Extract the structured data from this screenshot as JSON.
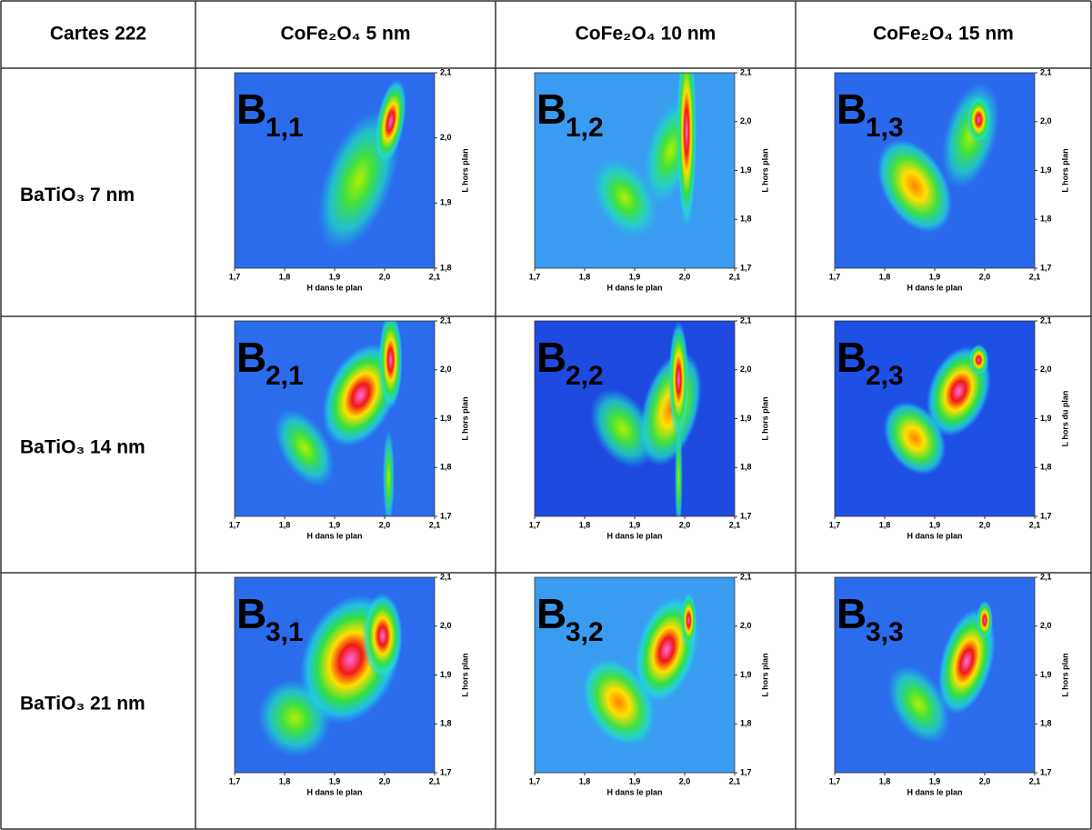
{
  "table": {
    "header": [
      "Cartes 222",
      "CoFe₂O₄ 5 nm",
      "CoFe₂O₄ 10 nm",
      "CoFe₂O₄ 15 nm"
    ],
    "rows": [
      {
        "label": "BaTiO₃ 7 nm",
        "cells": [
          {
            "label": "B",
            "subscript": "1,1",
            "xlabel": "H dans le plan",
            "ylabel": "L hors plan",
            "xticks": [
              "1,7",
              "1,8",
              "1,9",
              "2,0",
              "2,1"
            ],
            "yticks": [
              "1,8",
              "1,9",
              "2,0",
              "2,1"
            ]
          },
          {
            "label": "B",
            "subscript": "1,2",
            "xlabel": "H dans le plan",
            "ylabel": "L hors plan",
            "xticks": [
              "1,7",
              "1,8",
              "1,9",
              "2,0",
              "2,1"
            ],
            "yticks": [
              "1,7",
              "1,8",
              "1,9",
              "2,0",
              "2,1"
            ]
          },
          {
            "label": "B",
            "subscript": "1,3",
            "xlabel": "H dans le plan",
            "ylabel": "L hors plan",
            "xticks": [
              "1,7",
              "1,8",
              "1,9",
              "2,0",
              "2,1"
            ],
            "yticks": [
              "1,7",
              "1,8",
              "1,9",
              "2,0",
              "2,1"
            ]
          }
        ]
      },
      {
        "label": "BaTiO₃ 14 nm",
        "cells": [
          {
            "label": "B",
            "subscript": "2,1",
            "xlabel": "H dans le plan",
            "ylabel": "L hors plan",
            "xticks": [
              "1,7",
              "1,8",
              "1,9",
              "2,0",
              "2,1"
            ],
            "yticks": [
              "1,7",
              "1,8",
              "1,9",
              "2,0",
              "2,1"
            ]
          },
          {
            "label": "B",
            "subscript": "2,2",
            "xlabel": "H dans le plan",
            "ylabel": "L hors plan",
            "xticks": [
              "1,7",
              "1,8",
              "1,9",
              "2,0",
              "2,1"
            ],
            "yticks": [
              "1,7",
              "1,8",
              "1,9",
              "2,0",
              "2,1"
            ]
          },
          {
            "label": "B",
            "subscript": "2,3",
            "xlabel": "H dans le plan",
            "ylabel": "L hors du plan",
            "xticks": [
              "1,7",
              "1,8",
              "1,9",
              "2,0",
              "2,1"
            ],
            "yticks": [
              "1,7",
              "1,8",
              "1,9",
              "2,0",
              "2,1"
            ]
          }
        ]
      },
      {
        "label": "BaTiO₃ 21 nm",
        "cells": [
          {
            "label": "B",
            "subscript": "3,1",
            "xlabel": "H dans le plan",
            "ylabel": "L hors plan",
            "xticks": [
              "1,7",
              "1,8",
              "1,9",
              "2,0",
              "2,1"
            ],
            "yticks": [
              "1,7",
              "1,8",
              "1,9",
              "2,0",
              "2,1"
            ]
          },
          {
            "label": "B",
            "subscript": "3,2",
            "xlabel": "H dans le plan",
            "ylabel": "L hors plan",
            "xticks": [
              "1,7",
              "1,8",
              "1,9",
              "2,0",
              "2,1"
            ],
            "yticks": [
              "1,7",
              "1,8",
              "1,9",
              "2,0",
              "2,1"
            ]
          },
          {
            "label": "B",
            "subscript": "3,3",
            "xlabel": "H dans le plan",
            "ylabel": "L hors plan",
            "xticks": [
              "1,7",
              "1,8",
              "1,9",
              "2,0",
              "2,1"
            ],
            "yticks": [
              "1,7",
              "1,8",
              "1,9",
              "2,0",
              "2,1"
            ]
          }
        ]
      }
    ]
  }
}
